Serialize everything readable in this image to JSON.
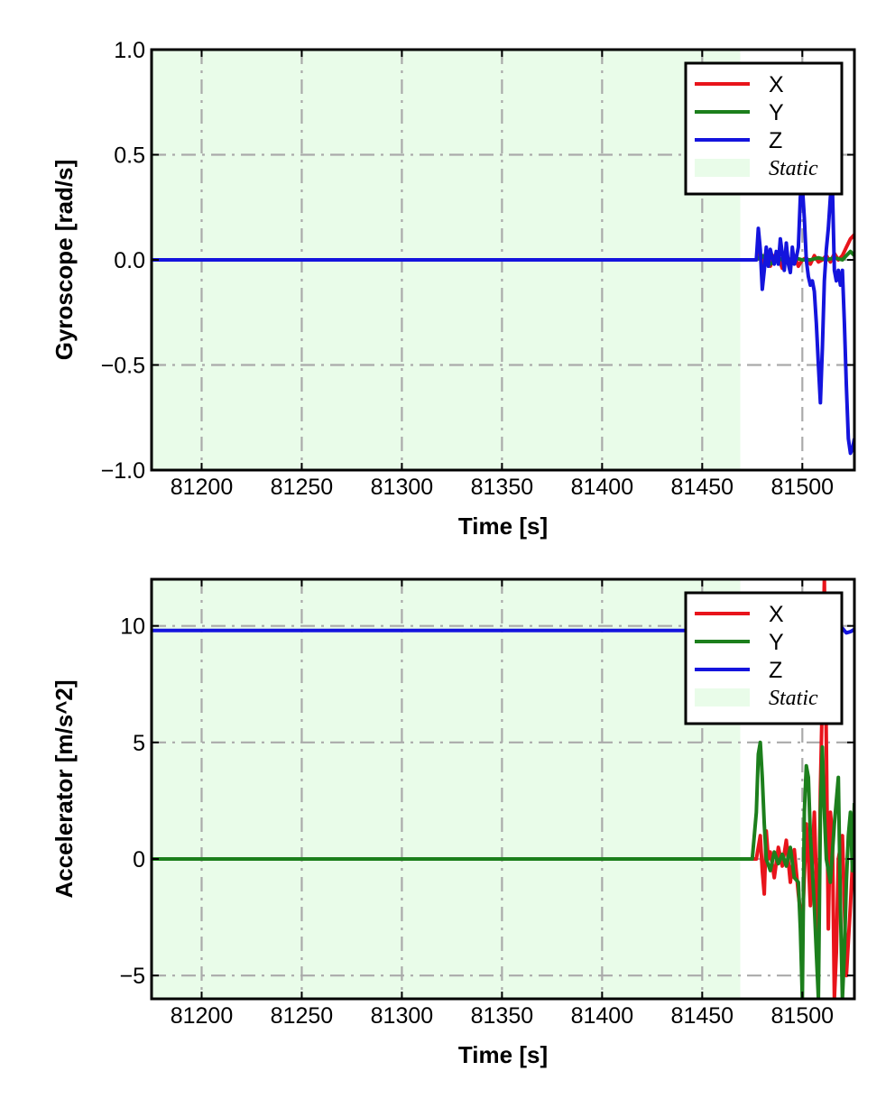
{
  "colors": {
    "x": "#e8141b",
    "y": "#1c7f1c",
    "z": "#1414dd",
    "static": "#e9fce9",
    "grid": "#aaaaaa"
  },
  "chart_data": [
    {
      "type": "line",
      "title": "",
      "xlabel": "Time [s]",
      "ylabel": "Gyroscope [rad/s]",
      "xlim": [
        81175,
        81526
      ],
      "ylim": [
        -1.0,
        1.0
      ],
      "xticks": [
        81200,
        81250,
        81300,
        81350,
        81400,
        81450,
        81500
      ],
      "xtick_labels": [
        "81200",
        "81250",
        "81300",
        "81350",
        "81400",
        "81450",
        "81500"
      ],
      "yticks": [
        -1.0,
        -0.5,
        0.0,
        0.5,
        1.0
      ],
      "ytick_labels": [
        "−1.0",
        "−0.5",
        "0.0",
        "0.5",
        "1.0"
      ],
      "grid": true,
      "legend_position": "top-right",
      "static_interval": [
        81175,
        81469
      ],
      "legend": [
        "X",
        "Y",
        "Z",
        "Static"
      ],
      "series": [
        {
          "name": "X",
          "color": "x",
          "x": [
            81175,
            81477,
            81478,
            81480,
            81482,
            81484,
            81486,
            81488,
            81490,
            81492,
            81494,
            81496,
            81498,
            81500,
            81502,
            81504,
            81506,
            81508,
            81510,
            81512,
            81514,
            81516,
            81518,
            81520,
            81522,
            81524,
            81526
          ],
          "y": [
            0.0,
            0.0,
            0.03,
            -0.02,
            0.04,
            -0.03,
            0.02,
            0.01,
            -0.04,
            0.03,
            -0.02,
            0.02,
            -0.03,
            0.0,
            0.01,
            -0.02,
            0.02,
            -0.01,
            0.0,
            0.02,
            -0.01,
            0.03,
            0.0,
            0.02,
            0.06,
            0.1,
            0.12
          ]
        },
        {
          "name": "Y",
          "color": "y",
          "x": [
            81175,
            81477,
            81480,
            81484,
            81488,
            81492,
            81496,
            81500,
            81504,
            81508,
            81512,
            81516,
            81520,
            81522,
            81524,
            81526
          ],
          "y": [
            0.0,
            0.0,
            0.02,
            -0.02,
            0.01,
            -0.01,
            0.01,
            0.0,
            0.0,
            0.01,
            0.0,
            0.01,
            0.0,
            0.02,
            0.04,
            0.02
          ]
        },
        {
          "name": "Z",
          "color": "z",
          "x": [
            81175,
            81477,
            81478,
            81479,
            81480,
            81481,
            81482,
            81483,
            81484,
            81485,
            81486,
            81487,
            81488,
            81489,
            81490,
            81491,
            81492,
            81493,
            81494,
            81495,
            81496,
            81497,
            81498,
            81499,
            81500,
            81501,
            81502,
            81503,
            81504,
            81505,
            81506,
            81507,
            81508,
            81509,
            81510,
            81511,
            81512,
            81513,
            81514,
            81515,
            81516,
            81517,
            81518,
            81519,
            81520,
            81521,
            81522,
            81523,
            81524,
            81525,
            81526
          ],
          "y": [
            0.0,
            0.0,
            0.15,
            0.05,
            -0.14,
            -0.05,
            0.06,
            -0.03,
            0.05,
            0.01,
            -0.02,
            0.04,
            -0.02,
            0.1,
            0.03,
            -0.05,
            0.08,
            -0.02,
            -0.06,
            0.06,
            -0.02,
            0.01,
            0.06,
            0.3,
            0.35,
            0.2,
            0.0,
            -0.08,
            -0.12,
            -0.1,
            -0.15,
            -0.3,
            -0.5,
            -0.68,
            -0.42,
            -0.1,
            0.05,
            0.15,
            0.3,
            0.35,
            -0.05,
            -0.1,
            -0.05,
            -0.12,
            -0.05,
            -0.3,
            -0.6,
            -0.85,
            -0.92,
            -0.9,
            -0.85
          ]
        }
      ]
    },
    {
      "type": "line",
      "title": "",
      "xlabel": "Time [s]",
      "ylabel": "Accelerator [m/s^2]",
      "xlim": [
        81175,
        81526
      ],
      "ylim": [
        -6.0,
        12.0
      ],
      "xticks": [
        81200,
        81250,
        81300,
        81350,
        81400,
        81450,
        81500
      ],
      "xtick_labels": [
        "81200",
        "81250",
        "81300",
        "81350",
        "81400",
        "81450",
        "81500"
      ],
      "yticks": [
        -5,
        0,
        5,
        10
      ],
      "ytick_labels": [
        "−5",
        "0",
        "5",
        "10"
      ],
      "grid": true,
      "legend_position": "top-right",
      "static_interval": [
        81175,
        81469
      ],
      "legend": [
        "X",
        "Y",
        "Z",
        "Static"
      ],
      "series": [
        {
          "name": "X",
          "color": "x",
          "x": [
            81175,
            81477,
            81479,
            81480,
            81481,
            81482,
            81483,
            81484,
            81486,
            81488,
            81490,
            81492,
            81494,
            81496,
            81498,
            81500,
            81502,
            81503,
            81504,
            81506,
            81508,
            81509,
            81510,
            81511,
            81512,
            81513,
            81514,
            81515,
            81516,
            81517,
            81518,
            81520,
            81522,
            81524,
            81526
          ],
          "y": [
            0.0,
            0.0,
            1.0,
            -0.5,
            -1.5,
            1.2,
            0.0,
            0.3,
            -0.8,
            0.5,
            -0.3,
            0.8,
            -1.0,
            0.4,
            -1.5,
            -3.0,
            1.5,
            0.0,
            -2.0,
            2.0,
            -4.0,
            3.0,
            7.0,
            12.0,
            5.0,
            -3.0,
            2.0,
            1.0,
            -6.0,
            -4.0,
            0.0,
            1.0,
            -5.0,
            -2.0,
            1.5
          ]
        },
        {
          "name": "Y",
          "color": "y",
          "x": [
            81175,
            81475,
            81477,
            81478,
            81479,
            81480,
            81481,
            81482,
            81484,
            81486,
            81488,
            81490,
            81492,
            81494,
            81496,
            81498,
            81499,
            81500,
            81501,
            81502,
            81503,
            81504,
            81506,
            81507,
            81508,
            81509,
            81510,
            81511,
            81512,
            81514,
            81516,
            81517,
            81518,
            81519,
            81520,
            81521,
            81522,
            81523,
            81524,
            81525,
            81526
          ],
          "y": [
            0.0,
            0.0,
            2.0,
            4.5,
            5.0,
            3.5,
            1.5,
            0.0,
            -0.5,
            0.3,
            -0.2,
            0.2,
            -0.3,
            0.5,
            -0.8,
            -1.0,
            -3.0,
            -6.0,
            2.0,
            4.0,
            3.5,
            1.0,
            -2.0,
            -4.0,
            -6.0,
            2.0,
            4.8,
            2.0,
            0.0,
            -1.0,
            1.5,
            2.5,
            3.5,
            -2.0,
            -6.0,
            -4.0,
            -1.0,
            1.0,
            2.0,
            -0.5,
            2.4
          ]
        },
        {
          "name": "Z",
          "color": "z",
          "x": [
            81175,
            81500,
            81502,
            81504,
            81506,
            81508,
            81510,
            81512,
            81514,
            81516,
            81518,
            81520,
            81522,
            81524,
            81526
          ],
          "y": [
            9.8,
            9.8,
            9.8,
            9.8,
            9.85,
            9.7,
            9.9,
            9.8,
            9.75,
            9.85,
            9.8,
            9.9,
            9.7,
            9.75,
            9.85
          ]
        }
      ]
    }
  ]
}
